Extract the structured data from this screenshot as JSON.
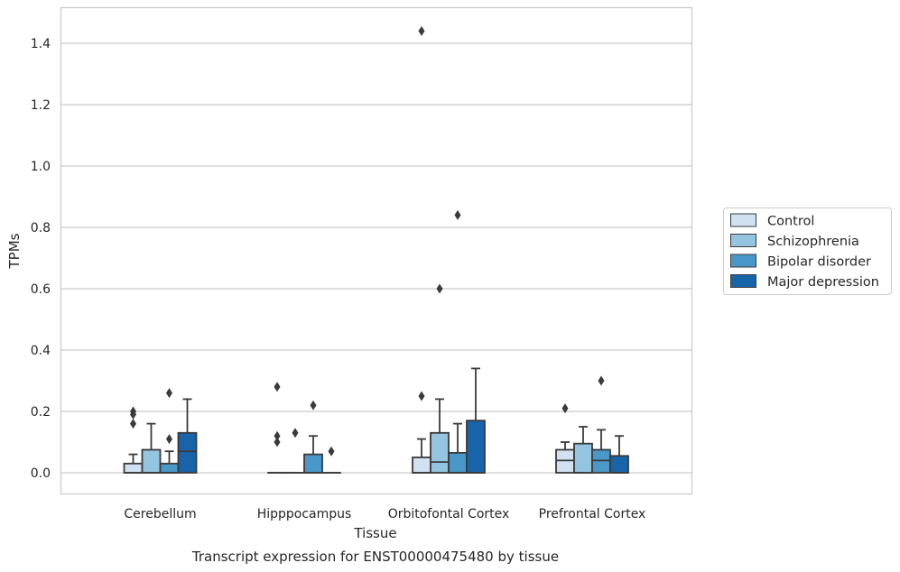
{
  "chart_data": {
    "type": "box",
    "title": "",
    "caption": "Transcript expression for ENST00000475480 by tissue",
    "xlabel": "Tissue",
    "ylabel": "TPMs",
    "ylim": [
      -0.07,
      1.52
    ],
    "yticks": [
      "0.0",
      "0.2",
      "0.4",
      "0.6",
      "0.8",
      "1.0",
      "1.2",
      "1.4"
    ],
    "ytick_values": [
      0.0,
      0.2,
      0.4,
      0.6,
      0.8,
      1.0,
      1.2,
      1.4
    ],
    "grid": "horizontal",
    "legend_position": "right",
    "categories": [
      "Cerebellum",
      "Hipppocampus",
      "Orbitofontal Cortex",
      "Prefrontal Cortex"
    ],
    "series": [
      {
        "name": "Control",
        "color": "#d0e1f2",
        "boxes": [
          {
            "whisker_low": 0.0,
            "q1": 0.0,
            "median": 0.0,
            "q3": 0.03,
            "whisker_high": 0.06,
            "outliers": [
              0.2,
              0.19,
              0.16
            ]
          },
          {
            "whisker_low": 0.0,
            "q1": 0.0,
            "median": 0.0,
            "q3": 0.0,
            "whisker_high": 0.0,
            "outliers": [
              0.28,
              0.12,
              0.1
            ]
          },
          {
            "whisker_low": 0.0,
            "q1": 0.0,
            "median": 0.0,
            "q3": 0.05,
            "whisker_high": 0.11,
            "outliers": [
              0.25,
              1.44
            ]
          },
          {
            "whisker_low": 0.0,
            "q1": 0.0,
            "median": 0.04,
            "q3": 0.075,
            "whisker_high": 0.1,
            "outliers": [
              0.21
            ]
          }
        ]
      },
      {
        "name": "Schizophrenia",
        "color": "#94c4df",
        "boxes": [
          {
            "whisker_low": 0.0,
            "q1": 0.0,
            "median": 0.0,
            "q3": 0.075,
            "whisker_high": 0.16,
            "outliers": []
          },
          {
            "whisker_low": 0.0,
            "q1": 0.0,
            "median": 0.0,
            "q3": 0.0,
            "whisker_high": 0.0,
            "outliers": [
              0.13
            ]
          },
          {
            "whisker_low": 0.0,
            "q1": 0.0,
            "median": 0.035,
            "q3": 0.13,
            "whisker_high": 0.24,
            "outliers": [
              0.6
            ]
          },
          {
            "whisker_low": 0.0,
            "q1": 0.0,
            "median": 0.0,
            "q3": 0.095,
            "whisker_high": 0.15,
            "outliers": []
          }
        ]
      },
      {
        "name": "Bipolar disorder",
        "color": "#4a98c9",
        "boxes": [
          {
            "whisker_low": 0.0,
            "q1": 0.0,
            "median": 0.0,
            "q3": 0.03,
            "whisker_high": 0.07,
            "outliers": [
              0.11,
              0.26
            ]
          },
          {
            "whisker_low": 0.0,
            "q1": 0.0,
            "median": 0.0,
            "q3": 0.06,
            "whisker_high": 0.12,
            "outliers": [
              0.22
            ]
          },
          {
            "whisker_low": 0.0,
            "q1": 0.0,
            "median": 0.0,
            "q3": 0.065,
            "whisker_high": 0.16,
            "outliers": [
              0.84
            ]
          },
          {
            "whisker_low": 0.0,
            "q1": 0.0,
            "median": 0.04,
            "q3": 0.075,
            "whisker_high": 0.14,
            "outliers": [
              0.3
            ]
          }
        ]
      },
      {
        "name": "Major depression",
        "color": "#1764ab",
        "boxes": [
          {
            "whisker_low": 0.0,
            "q1": 0.0,
            "median": 0.07,
            "q3": 0.13,
            "whisker_high": 0.24,
            "outliers": []
          },
          {
            "whisker_low": 0.0,
            "q1": 0.0,
            "median": 0.0,
            "q3": 0.0,
            "whisker_high": 0.0,
            "outliers": [
              0.07
            ]
          },
          {
            "whisker_low": 0.0,
            "q1": 0.0,
            "median": 0.0,
            "q3": 0.17,
            "whisker_high": 0.34,
            "outliers": []
          },
          {
            "whisker_low": 0.0,
            "q1": 0.0,
            "median": 0.0,
            "q3": 0.055,
            "whisker_high": 0.12,
            "outliers": []
          }
        ]
      }
    ]
  }
}
